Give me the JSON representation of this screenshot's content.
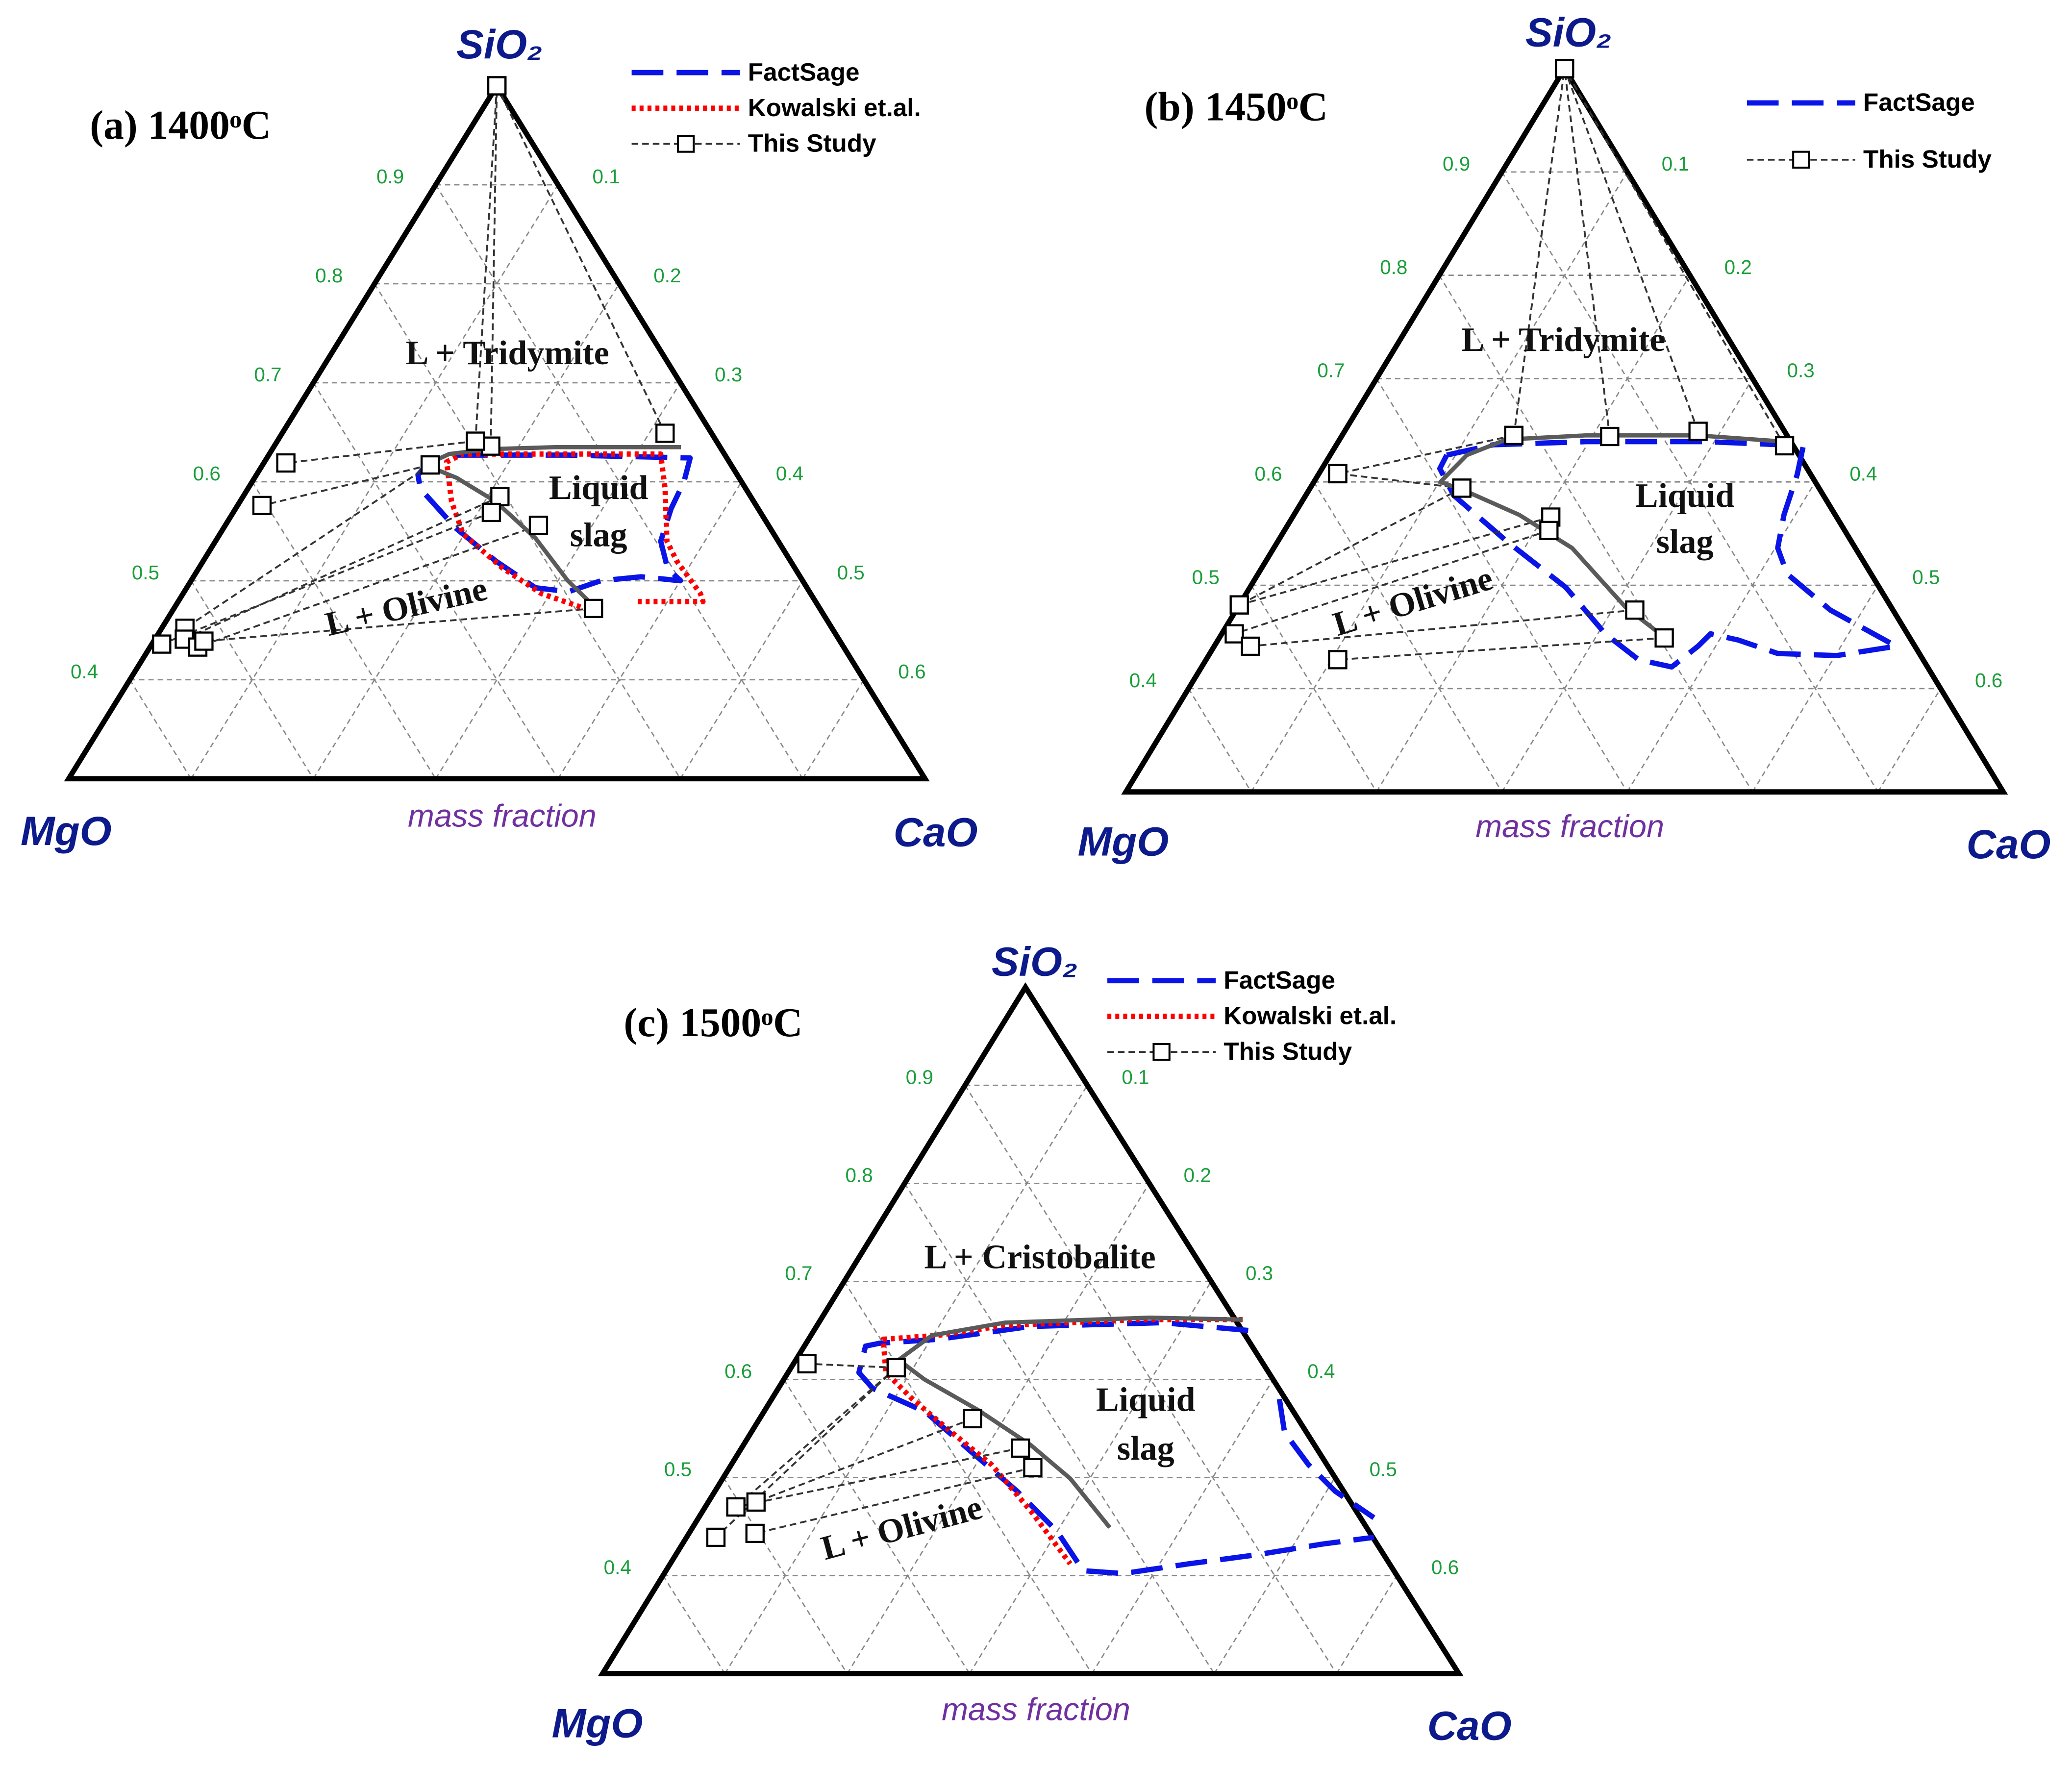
{
  "chart_data": [
    {
      "type": "ternary",
      "title": "(a) 1400ᵒC",
      "apex_labels": {
        "top": "SiO₂",
        "left": "MgO",
        "right": "CaO"
      },
      "axis_label": "mass fraction",
      "sio2lim": [
        0.3,
        1
      ],
      "sio2ticks": [
        0.4,
        0.5,
        0.6,
        0.7,
        0.8,
        0.9
      ],
      "caoticks": [
        0.1,
        0.2,
        0.3,
        0.4,
        0.5,
        0.6
      ],
      "grid": true,
      "legend": "upper right",
      "regions": [
        [
          "L + Tridymite"
        ],
        [
          "Liquid",
          "slag"
        ],
        [
          "L + Olivine"
        ]
      ],
      "series": [
        {
          "name": "FactSage",
          "color": "#0a14e6",
          "style": "dashed",
          "sio2": [
            0.627,
            0.627,
            0.624,
            0.6,
            0.573,
            0.54,
            0.513,
            0.5,
            0.504,
            0.5,
            0.489,
            0.493,
            0.52,
            0.553,
            0.593,
            0.607,
            0.62
          ],
          "cao": [
            0.153,
            0.245,
            0.346,
            0.353,
            0.356,
            0.364,
            0.383,
            0.4,
            0.366,
            0.335,
            0.314,
            0.285,
            0.239,
            0.19,
            0.141,
            0.132,
            0.135
          ]
        },
        {
          "name": "Kowalski et.al.",
          "color": "#ff0000",
          "style": "dotted",
          "sio2": [
            0.471,
            0.487,
            0.513,
            0.547,
            0.58,
            0.62,
            0.628,
            0.628,
            0.593,
            0.54,
            0.52,
            0.487,
            0.479,
            0.479
          ],
          "cao": [
            0.339,
            0.293,
            0.248,
            0.199,
            0.173,
            0.149,
            0.158,
            0.32,
            0.341,
            0.369,
            0.387,
            0.423,
            0.429,
            0.375
          ]
        },
        {
          "name": "This Study",
          "color": "#333333",
          "style": "dash-marker",
          "liquid": {
            "sio2": [
              0.641,
              0.636,
              0.649,
              0.641,
              0.617,
              0.617,
              0.585,
              0.569,
              0.556,
              0.472
            ],
            "cao": [
              0.162,
              0.177,
              0.313,
              0.162,
              0.137,
              0.137,
              0.21,
              0.211,
              0.256,
              0.343
            ]
          },
          "solid": {
            "sio2": [
              1,
              1,
              1,
              0.619,
              0.576,
              0.452,
              0.441,
              0.436,
              0.433,
              0.439
            ],
            "cao": [
              0,
              0,
              0,
              0.018,
              0.02,
              0.019,
              0.024,
              0.008,
              0.039,
              0.041
            ]
          }
        }
      ],
      "boundary": {
        "color": "#5a5a5a",
        "sio2": [
          0.635,
          0.635,
          0.633,
          0.628,
          0.617,
          0.604,
          0.58,
          0.543,
          0.5,
          0.467
        ],
        "cao": [
          0.333,
          0.23,
          0.177,
          0.147,
          0.133,
          0.165,
          0.209,
          0.26,
          0.308,
          0.352
        ]
      }
    },
    {
      "type": "ternary",
      "title": "(b) 1450ᵒC",
      "apex_labels": {
        "top": "SiO₂",
        "left": "MgO",
        "right": "CaO"
      },
      "axis_label": "mass fraction",
      "sio2lim": [
        0.3,
        1
      ],
      "sio2ticks": [
        0.4,
        0.5,
        0.6,
        0.7,
        0.8,
        0.9
      ],
      "caoticks": [
        0.1,
        0.2,
        0.3,
        0.4,
        0.5,
        0.6
      ],
      "grid": true,
      "legend": "upper right",
      "regions": [
        [
          "L + Tridymite"
        ],
        [
          "Liquid",
          "slag"
        ],
        [
          "L + Olivine"
        ]
      ],
      "series": [
        {
          "name": "FactSage",
          "color": "#0a14e6",
          "style": "dashed",
          "sio2": [
            0.626,
            0.636,
            0.639,
            0.639,
            0.635,
            0.607,
            0.568,
            0.536,
            0.511,
            0.476,
            0.441,
            0.432,
            0.434,
            0.447,
            0.453,
            0.441,
            0.421,
            0.428,
            0.453,
            0.498,
            0.543,
            0.587,
            0.613,
            0.626
          ],
          "cao": [
            0.093,
            0.125,
            0.198,
            0.293,
            0.373,
            0.382,
            0.391,
            0.402,
            0.422,
            0.474,
            0.544,
            0.501,
            0.453,
            0.415,
            0.39,
            0.386,
            0.375,
            0.345,
            0.306,
            0.252,
            0.182,
            0.118,
            0.094,
            0.093
          ]
        },
        {
          "name": "This Study",
          "color": "#333333",
          "style": "dash-marker",
          "liquid": {
            "sio2": [
              0.645,
              0.644,
              0.649,
              0.635,
              0.645,
              0.594,
              0.594,
              0.566,
              0.553,
              0.476,
              0.449
            ],
            "cao": [
              0.137,
              0.214,
              0.282,
              0.358,
              0.137,
              0.121,
              0.121,
              0.206,
              0.211,
              0.318,
              0.355
            ]
          },
          "solid": {
            "sio2": [
              1,
              1,
              1,
              1,
              0.608,
              0.608,
              0.481,
              0.481,
              0.453,
              0.441,
              0.428
            ],
            "cao": [
              0,
              0,
              0,
              0,
              0.015,
              0.015,
              0,
              0,
              0.01,
              0.029,
              0.105
            ]
          }
        }
      ],
      "boundary": {
        "color": "#5a5a5a",
        "sio2": [
          0.639,
          0.645,
          0.645,
          0.641,
          0.626,
          0.6,
          0.591,
          0.568,
          0.536,
          0.479,
          0.447
        ],
        "cao": [
          0.356,
          0.284,
          0.194,
          0.133,
          0.109,
          0.101,
          0.126,
          0.18,
          0.238,
          0.309,
          0.359
        ]
      }
    },
    {
      "type": "ternary",
      "title": "(c) 1500ᵒC",
      "apex_labels": {
        "top": "SiO₂",
        "left": "MgO",
        "right": "CaO"
      },
      "axis_label": "mass fraction",
      "sio2lim": [
        0.3,
        1
      ],
      "sio2ticks": [
        0.4,
        0.5,
        0.6,
        0.7,
        0.8,
        0.9
      ],
      "caoticks": [
        0.1,
        0.2,
        0.3,
        0.4,
        0.5,
        0.6
      ],
      "grid": true,
      "legend": "upper right",
      "regions": [
        [
          "L + Cristobalite"
        ],
        [
          "Liquid",
          "slag"
        ],
        [
          "L + Olivine"
        ]
      ],
      "series": [
        {
          "name": "FactSage",
          "color": "#0a14e6",
          "style": "dashed",
          "sio2": [
            0.65,
            0.658,
            0.654,
            0.641,
            0.637,
            0.634,
            0.607,
            0.591,
            0.567,
            0.526,
            0.486,
            0.445,
            0.405,
            0.402,
            0.412,
            0.421,
            0.432,
            0.439,
            null,
            0.58,
            0.546,
            0.513,
            0.486,
            0.459
          ],
          "cao": [
            0.355,
            0.281,
            0.175,
            0.106,
            0.06,
            0.05,
            0.058,
            0.077,
            0.132,
            0.19,
            0.247,
            0.3,
            0.341,
            0.375,
            0.424,
            0.474,
            0.523,
            0.562,
            null,
            0.415,
            0.436,
            0.472,
            0.507,
            0.552
          ]
        },
        {
          "name": "Kowalski et.al.",
          "color": "#ff0000",
          "style": "dotted",
          "sio2": [
            0.661,
            0.661,
            0.655,
            0.645,
            0.641,
            0.607,
            0.58,
            0.546,
            0.513,
            0.466,
            0.412
          ],
          "cao": [
            0.345,
            0.258,
            0.153,
            0.104,
            0.061,
            0.08,
            0.115,
            0.164,
            0.213,
            0.268,
            0.327
          ]
        },
        {
          "name": "This Study",
          "color": "#333333",
          "style": "dash-marker",
          "liquid": {
            "sio2": [
              0.612,
              0.612,
              0.612,
              0.56,
              0.53,
              0.51
            ],
            "cao": [
              0.086,
              0.086,
              0.086,
              0.174,
              0.228,
              0.248
            ]
          },
          "solid": {
            "sio2": [
              0.616,
              0.47,
              0.439,
              0.475,
              0.47,
              0.443
            ],
            "cao": [
              0.011,
              0.025,
              0.024,
              0.039,
              0.025,
              0.054
            ]
          }
        }
      ],
      "boundary": {
        "color": "#5a5a5a",
        "sio2": [
          0.661,
          0.663,
          0.658,
          0.645,
          0.62,
          0.6,
          0.569,
          0.533,
          0.499,
          0.449
        ],
        "cao": [
          0.345,
          0.268,
          0.152,
          0.099,
          0.084,
          0.115,
          0.174,
          0.235,
          0.284,
          0.341
        ]
      }
    }
  ]
}
